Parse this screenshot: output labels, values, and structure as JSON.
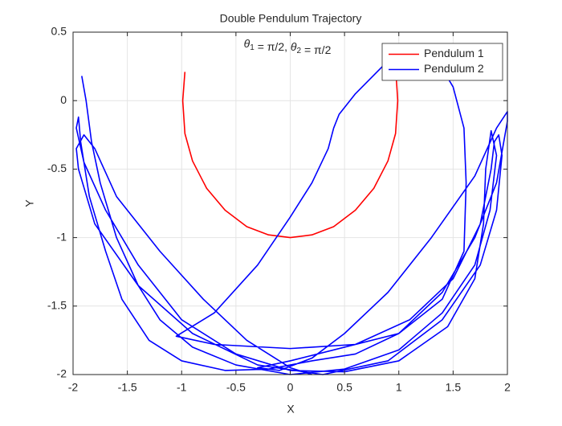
{
  "chart_data": {
    "type": "line",
    "title": "Double Pendulum Trajectory",
    "subtitle": "θ1 = π/2, θ2 = π/2",
    "x_label": "X",
    "y_label": "Y",
    "xlim": [
      -2,
      2
    ],
    "ylim": [
      -2,
      0.5
    ],
    "xticks": [
      -2,
      -1.5,
      -1,
      -0.5,
      0,
      0.5,
      1,
      1.5,
      2
    ],
    "yticks": [
      -2,
      -1.5,
      -1,
      -0.5,
      0,
      0.5
    ],
    "grid": true,
    "legend": "northeast",
    "series": [
      {
        "name": "Pendulum 1",
        "color": "#ff0000",
        "x": [
          -0.97,
          -0.99,
          -0.97,
          -0.9,
          -0.77,
          -0.6,
          -0.4,
          -0.2,
          0,
          0.2,
          0.4,
          0.6,
          0.77,
          0.9,
          0.97,
          0.99,
          0.97
        ],
        "values": [
          0.21,
          0,
          -0.24,
          -0.44,
          -0.64,
          -0.8,
          -0.92,
          -0.98,
          -1,
          -0.98,
          -0.92,
          -0.8,
          -0.64,
          -0.44,
          -0.24,
          0,
          0.25
        ]
      },
      {
        "name": "Pendulum 2",
        "color": "#0000ff",
        "x": [
          -1.92,
          -1.88,
          -1.83,
          -1.75,
          -1.6,
          -1.4,
          -1.2,
          -0.9,
          -0.5,
          0,
          0.5,
          1.0,
          1.4,
          1.7,
          1.84,
          1.9,
          1.85,
          1.8,
          1.78,
          1.7,
          1.45,
          1.0,
          0.5,
          0,
          -0.5,
          -1.0,
          -1.4,
          -1.7,
          -1.9,
          -1.97,
          -1.95,
          -1.93,
          -1.85,
          -1.7,
          -1.55,
          -1.3,
          -1.0,
          -0.6,
          -0.2,
          0.2,
          0.6,
          1.0,
          1.4,
          1.7,
          1.9,
          2.0,
          2.0,
          1.9,
          1.7,
          1.3,
          0.9,
          0.5,
          0.2,
          -0.1,
          -0.3,
          0,
          0.5,
          1.0,
          1.4,
          1.6,
          1.62,
          1.6,
          1.5,
          1.35,
          1.1,
          0.85,
          0.6,
          0.45,
          0.4,
          0.35,
          0.2,
          0,
          -0.3,
          -0.7,
          -1.05,
          -0.7,
          0,
          0.6,
          1.1,
          1.5,
          1.75,
          1.85,
          1.88,
          1.92,
          1.95,
          1.9,
          1.75,
          1.4,
          0.9,
          0.3,
          -0.3,
          -0.9,
          -1.4,
          -1.8,
          -1.95,
          -1.97,
          -1.9,
          -1.8,
          -1.6,
          -1.2,
          -0.8,
          -0.4,
          0,
          0.2
        ],
        "values": [
          0.18,
          0,
          -0.3,
          -0.6,
          -1.0,
          -1.35,
          -1.6,
          -1.8,
          -1.93,
          -2,
          -1.96,
          -1.82,
          -1.55,
          -1.2,
          -0.8,
          -0.4,
          -0.22,
          -0.5,
          -0.9,
          -1.3,
          -1.65,
          -1.9,
          -1.98,
          -1.97,
          -1.85,
          -1.6,
          -1.2,
          -0.8,
          -0.45,
          -0.2,
          -0.12,
          -0.3,
          -0.7,
          -1.1,
          -1.45,
          -1.75,
          -1.9,
          -1.97,
          -1.96,
          -1.9,
          -1.85,
          -1.7,
          -1.4,
          -1.0,
          -0.6,
          -0.15,
          -0.08,
          -0.2,
          -0.55,
          -1.0,
          -1.4,
          -1.7,
          -1.88,
          -1.97,
          -1.95,
          -1.9,
          -1.8,
          -1.7,
          -1.45,
          -1.1,
          -0.6,
          -0.2,
          0.1,
          0.3,
          0.35,
          0.25,
          0.05,
          -0.1,
          -0.2,
          -0.35,
          -0.6,
          -0.85,
          -1.2,
          -1.55,
          -1.72,
          -1.78,
          -1.81,
          -1.78,
          -1.6,
          -1.3,
          -0.9,
          -0.5,
          -0.3,
          -0.25,
          -0.4,
          -0.8,
          -1.2,
          -1.6,
          -1.9,
          -2.0,
          -1.93,
          -1.7,
          -1.35,
          -0.9,
          -0.5,
          -0.35,
          -0.25,
          -0.35,
          -0.7,
          -1.1,
          -1.45,
          -1.75,
          -1.95,
          -2.0
        ]
      }
    ]
  }
}
